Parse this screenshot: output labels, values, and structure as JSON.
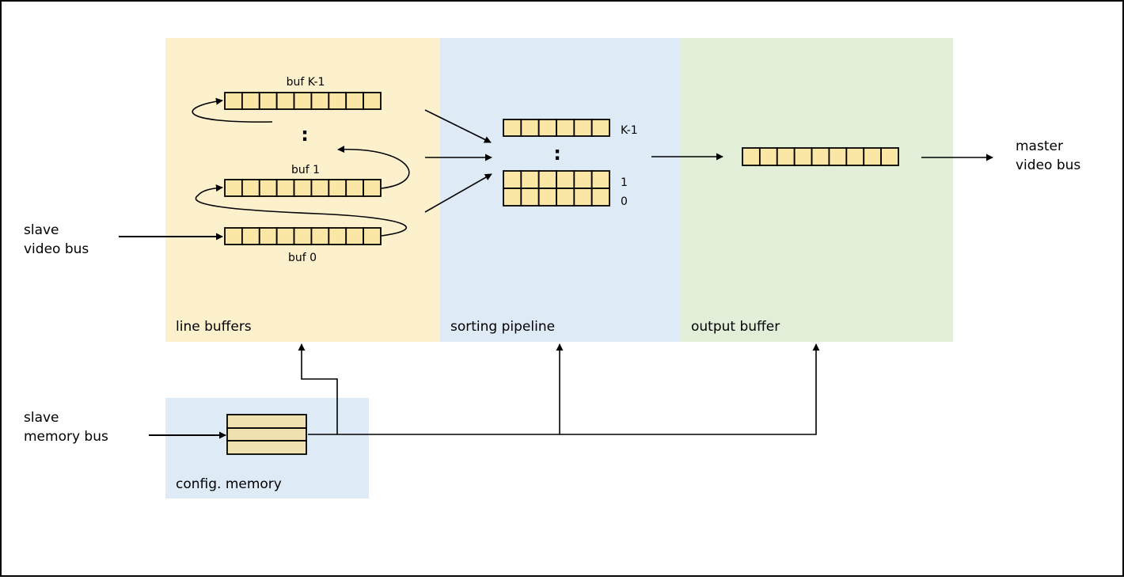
{
  "colors": {
    "line_buffers_bg": "#fdf0cc",
    "pipeline_bg": "#deeaf5",
    "output_bg": "#e3eed8",
    "cell_fill": "#fae7a6",
    "config_cell_fill": "#efe1b0",
    "stroke": "#000000"
  },
  "regions": {
    "line_buffers": "line buffers",
    "sorting_pipeline": "sorting pipeline",
    "output_buffer": "output buffer",
    "config_memory": "config. memory"
  },
  "external": {
    "slave_video_bus": [
      "slave",
      "video bus"
    ],
    "slave_memory_bus": [
      "slave",
      "memory bus"
    ],
    "master_video_bus": [
      "master",
      "video bus"
    ]
  },
  "buffers": {
    "buf_k1": "buf K-1",
    "buf_1": "buf 1",
    "buf_0": "buf 0",
    "ellipsis": ":"
  },
  "pipeline": {
    "label_k1": "K-1",
    "label_1": "1",
    "label_0": "0",
    "ellipsis": ":"
  }
}
